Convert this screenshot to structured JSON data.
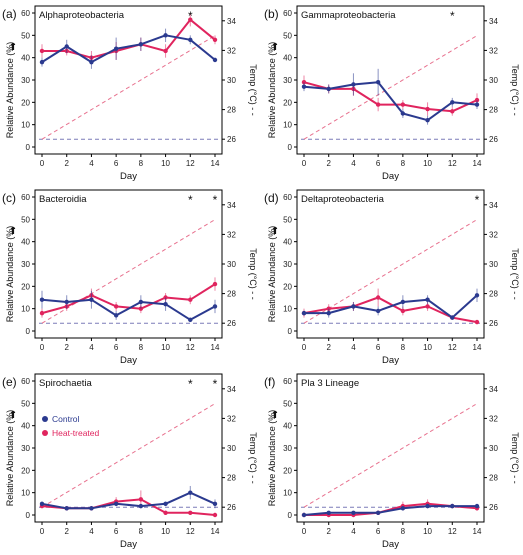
{
  "colors": {
    "control": "#2b3a8f",
    "heat_treated": "#e0245e",
    "temp_line": "#e8728f",
    "baseline": "#7b7bb8",
    "axis": "#000000"
  },
  "shared": {
    "xlabel": "Day",
    "ylabel": "Relative Abundance (%)",
    "y2label": "Temp (°C) - -",
    "x_ticks": [
      0,
      2,
      4,
      6,
      8,
      10,
      12,
      14
    ],
    "y_ticks": [
      0,
      10,
      20,
      30,
      40,
      50,
      60
    ],
    "y2_ticks": [
      26,
      28,
      30,
      32,
      34
    ],
    "arrow_glyph": "⬆",
    "temperature": {
      "baseline_value": 26,
      "ramp": [
        {
          "x": 0,
          "y": 26
        },
        {
          "x": 14,
          "y": 33
        }
      ]
    }
  },
  "legend": {
    "panel": 4,
    "items": [
      {
        "label": "Control",
        "series": "control"
      },
      {
        "label": "Heat-treated",
        "series": "heat_treated"
      }
    ]
  },
  "chart_data": [
    {
      "type": "line",
      "panel_label": "(a)",
      "title": "Alphaproteobacteria",
      "xlim": [
        0,
        14
      ],
      "ylim": [
        0,
        60
      ],
      "y2lim": [
        25,
        35
      ],
      "x": [
        0,
        2,
        4,
        6,
        8,
        10,
        12,
        14
      ],
      "asterisk_days": [
        12
      ],
      "series": [
        {
          "key": "control",
          "values": [
            38,
            45,
            38,
            44,
            46,
            50,
            48,
            39
          ],
          "err": [
            2,
            3,
            3,
            5,
            3,
            3,
            2,
            1
          ]
        },
        {
          "key": "heat_treated",
          "values": [
            43,
            43,
            40,
            43,
            46,
            43,
            57,
            48
          ],
          "err": [
            3,
            2,
            3,
            4,
            3,
            3,
            3,
            2
          ]
        }
      ]
    },
    {
      "type": "line",
      "panel_label": "(b)",
      "title": "Gammaproteobacteria",
      "xlim": [
        0,
        14
      ],
      "ylim": [
        0,
        60
      ],
      "y2lim": [
        25,
        35
      ],
      "x": [
        0,
        2,
        4,
        6,
        8,
        10,
        12,
        14
      ],
      "asterisk_days": [
        12
      ],
      "series": [
        {
          "key": "control",
          "values": [
            27,
            26,
            28,
            29,
            15,
            12,
            20,
            19
          ],
          "err": [
            2,
            2,
            5,
            6,
            2,
            2,
            2,
            2
          ]
        },
        {
          "key": "heat_treated",
          "values": [
            29,
            26,
            26,
            19,
            19,
            17,
            16,
            21
          ],
          "err": [
            3,
            2,
            3,
            3,
            2,
            3,
            2,
            3
          ]
        }
      ]
    },
    {
      "type": "line",
      "panel_label": "(c)",
      "title": "Bacteroidia",
      "xlim": [
        0,
        14
      ],
      "ylim": [
        0,
        60
      ],
      "y2lim": [
        25,
        35
      ],
      "x": [
        0,
        2,
        4,
        6,
        8,
        10,
        12,
        14
      ],
      "asterisk_days": [
        12,
        14
      ],
      "series": [
        {
          "key": "control",
          "values": [
            14,
            13,
            14,
            7,
            13,
            12,
            5,
            11
          ],
          "err": [
            4,
            3,
            4,
            2,
            3,
            3,
            1,
            3
          ]
        },
        {
          "key": "heat_treated",
          "values": [
            8,
            11,
            16,
            11,
            10,
            15,
            14,
            21
          ],
          "err": [
            2,
            2,
            3,
            2,
            2,
            2,
            2,
            3
          ]
        }
      ]
    },
    {
      "type": "line",
      "panel_label": "(d)",
      "title": "Deltaproteobacteria",
      "xlim": [
        0,
        14
      ],
      "ylim": [
        0,
        60
      ],
      "y2lim": [
        25,
        35
      ],
      "x": [
        0,
        2,
        4,
        6,
        8,
        10,
        12,
        14
      ],
      "asterisk_days": [
        14
      ],
      "series": [
        {
          "key": "control",
          "values": [
            8,
            8,
            11,
            9,
            13,
            14,
            6,
            16
          ],
          "err": [
            1,
            2,
            2,
            2,
            3,
            2,
            1,
            3
          ]
        },
        {
          "key": "heat_treated",
          "values": [
            8,
            10,
            11,
            15,
            9,
            11,
            6,
            4
          ],
          "err": [
            2,
            2,
            2,
            4,
            2,
            2,
            1,
            1
          ]
        }
      ]
    },
    {
      "type": "line",
      "panel_label": "(e)",
      "title": "Spirochaetia",
      "xlim": [
        0,
        14
      ],
      "ylim": [
        0,
        60
      ],
      "y2lim": [
        25,
        35
      ],
      "x": [
        0,
        2,
        4,
        6,
        8,
        10,
        12,
        14
      ],
      "asterisk_days": [
        12,
        14
      ],
      "series": [
        {
          "key": "control",
          "values": [
            5,
            3,
            3,
            5,
            4,
            5,
            10,
            5
          ],
          "err": [
            1,
            1,
            1,
            1,
            1,
            1,
            3,
            2
          ]
        },
        {
          "key": "heat_treated",
          "values": [
            4,
            3,
            3,
            6,
            7,
            1,
            1,
            0
          ],
          "err": [
            1,
            1,
            1,
            2,
            4,
            1,
            0,
            0
          ]
        }
      ]
    },
    {
      "type": "line",
      "panel_label": "(f)",
      "title": "Pla 3 Lineage",
      "xlim": [
        0,
        14
      ],
      "ylim": [
        0,
        60
      ],
      "y2lim": [
        25,
        35
      ],
      "x": [
        0,
        2,
        4,
        6,
        8,
        10,
        12,
        14
      ],
      "asterisk_days": [],
      "series": [
        {
          "key": "control",
          "values": [
            0,
            1,
            1,
            1,
            3,
            4,
            4,
            4
          ],
          "err": [
            0,
            0,
            0,
            0,
            1,
            1,
            1,
            1
          ]
        },
        {
          "key": "heat_treated",
          "values": [
            0,
            0,
            0,
            1,
            4,
            5,
            4,
            3
          ],
          "err": [
            0,
            0,
            0,
            1,
            2,
            2,
            1,
            1
          ]
        }
      ]
    }
  ]
}
